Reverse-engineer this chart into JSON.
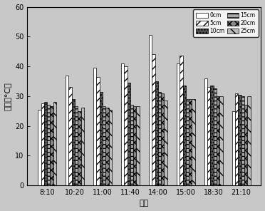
{
  "times": [
    "8:10",
    "10:20",
    "11:00",
    "11:40",
    "14:00",
    "15:00",
    "18:30",
    "21:10"
  ],
  "series": {
    "0cm": [
      25.5,
      37.0,
      39.5,
      41.0,
      50.5,
      41.0,
      36.0,
      25.0
    ],
    "5cm": [
      27.5,
      33.0,
      36.5,
      40.0,
      44.0,
      43.5,
      33.0,
      31.0
    ],
    "10cm": [
      28.0,
      29.0,
      31.5,
      34.5,
      35.0,
      33.5,
      33.5,
      30.5
    ],
    "15cm": [
      27.0,
      26.5,
      26.5,
      27.0,
      31.5,
      29.0,
      32.5,
      30.0
    ],
    "20cm": [
      26.5,
      25.0,
      26.0,
      26.5,
      31.0,
      29.0,
      30.0,
      27.0
    ],
    "25cm": [
      28.0,
      26.0,
      25.5,
      26.5,
      28.5,
      29.0,
      30.0,
      30.0
    ]
  },
  "series_order": [
    "0cm",
    "5cm",
    "10cm",
    "15cm",
    "20cm",
    "25cm"
  ],
  "ylabel": "温度（°C）",
  "xlabel": "时间",
  "ylim": [
    0,
    60
  ],
  "yticks": [
    0,
    10,
    20,
    30,
    40,
    50,
    60
  ],
  "bar_width": 0.11,
  "figsize": [
    3.72,
    2.96
  ],
  "dpi": 100,
  "font_size": 8,
  "tick_font_size": 7,
  "bg_color": "#c8c8c8"
}
